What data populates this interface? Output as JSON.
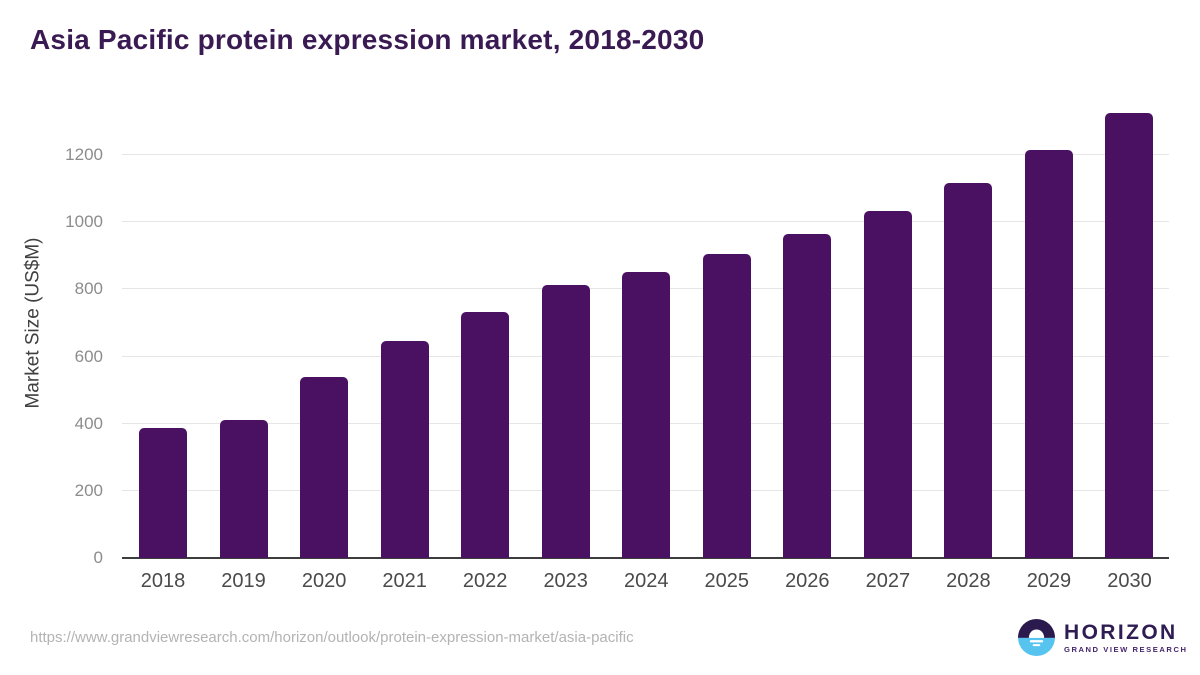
{
  "title": "Asia Pacific protein expression market, 2018-2030",
  "chart_data": {
    "type": "bar",
    "title": "Asia Pacific protein expression market, 2018-2030",
    "categories": [
      "2018",
      "2019",
      "2020",
      "2021",
      "2022",
      "2023",
      "2024",
      "2025",
      "2026",
      "2027",
      "2028",
      "2029",
      "2030"
    ],
    "values": [
      388,
      410,
      539,
      645,
      732,
      812,
      852,
      905,
      965,
      1033,
      1116,
      1215,
      1327
    ],
    "xlabel": "",
    "ylabel": "Market Size (US$M)",
    "ylim": [
      0,
      1400
    ],
    "yticks": [
      0,
      200,
      400,
      600,
      800,
      1000,
      1200
    ],
    "grid": true,
    "legend": false,
    "bar_color": "#4a1162",
    "grid_color": "#e6e6e6",
    "axis_color": "#3d3d3d"
  },
  "footer": {
    "source_url": "https://www.grandviewresearch.com/horizon/outlook/protein-expression-market/asia-pacific",
    "logo": {
      "brand": "HORIZON",
      "subbrand": "GRAND VIEW RESEARCH",
      "purple": "#2b1a4e",
      "blue": "#57c4f0"
    }
  }
}
